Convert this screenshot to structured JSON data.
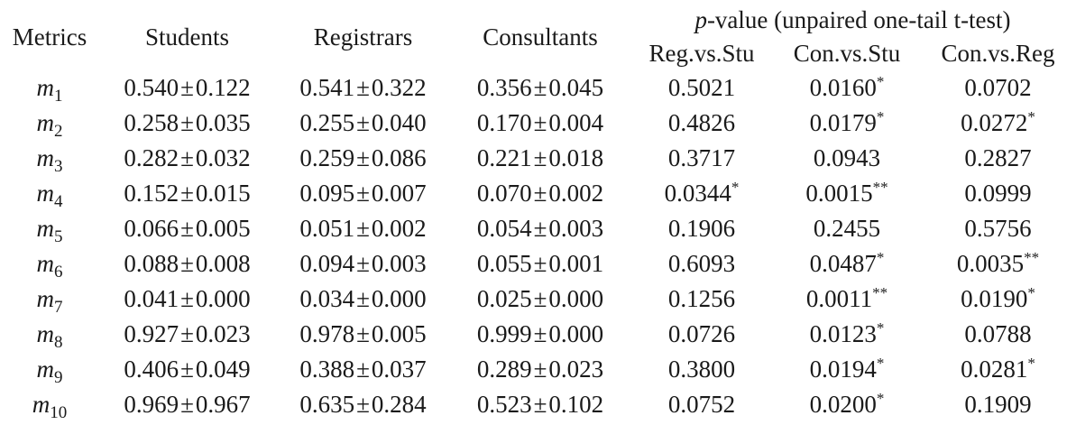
{
  "table": {
    "headers": {
      "metrics": "Metrics",
      "students": "Students",
      "registrars": "Registrars",
      "consultants": "Consultants",
      "pvalue_var": "p",
      "pvalue_title": "-value (unpaired one-tail t-test)",
      "reg_vs_stu": "Reg.vs.Stu",
      "con_vs_stu": "Con.vs.Stu",
      "con_vs_reg": "Con.vs.Reg"
    },
    "pm_symbol": "±",
    "rows": [
      {
        "metric": "m",
        "sub": "1",
        "students": [
          "0.540",
          "0.122"
        ],
        "registrars": [
          "0.541",
          "0.322"
        ],
        "consultants": [
          "0.356",
          "0.045"
        ],
        "reg_vs_stu": [
          "0.5021",
          ""
        ],
        "con_vs_stu": [
          "0.0160",
          "*"
        ],
        "con_vs_reg": [
          "0.0702",
          ""
        ]
      },
      {
        "metric": "m",
        "sub": "2",
        "students": [
          "0.258",
          "0.035"
        ],
        "registrars": [
          "0.255",
          "0.040"
        ],
        "consultants": [
          "0.170",
          "0.004"
        ],
        "reg_vs_stu": [
          "0.4826",
          ""
        ],
        "con_vs_stu": [
          "0.0179",
          "*"
        ],
        "con_vs_reg": [
          "0.0272",
          "*"
        ]
      },
      {
        "metric": "m",
        "sub": "3",
        "students": [
          "0.282",
          "0.032"
        ],
        "registrars": [
          "0.259",
          "0.086"
        ],
        "consultants": [
          "0.221",
          "0.018"
        ],
        "reg_vs_stu": [
          "0.3717",
          ""
        ],
        "con_vs_stu": [
          "0.0943",
          ""
        ],
        "con_vs_reg": [
          "0.2827",
          ""
        ]
      },
      {
        "metric": "m",
        "sub": "4",
        "students": [
          "0.152",
          "0.015"
        ],
        "registrars": [
          "0.095",
          "0.007"
        ],
        "consultants": [
          "0.070",
          "0.002"
        ],
        "reg_vs_stu": [
          "0.0344",
          "*"
        ],
        "con_vs_stu": [
          "0.0015",
          "**"
        ],
        "con_vs_reg": [
          "0.0999",
          ""
        ]
      },
      {
        "metric": "m",
        "sub": "5",
        "students": [
          "0.066",
          "0.005"
        ],
        "registrars": [
          "0.051",
          "0.002"
        ],
        "consultants": [
          "0.054",
          "0.003"
        ],
        "reg_vs_stu": [
          "0.1906",
          ""
        ],
        "con_vs_stu": [
          "0.2455",
          ""
        ],
        "con_vs_reg": [
          "0.5756",
          ""
        ]
      },
      {
        "metric": "m",
        "sub": "6",
        "students": [
          "0.088",
          "0.008"
        ],
        "registrars": [
          "0.094",
          "0.003"
        ],
        "consultants": [
          "0.055",
          "0.001"
        ],
        "reg_vs_stu": [
          "0.6093",
          ""
        ],
        "con_vs_stu": [
          "0.0487",
          "*"
        ],
        "con_vs_reg": [
          "0.0035",
          "**"
        ]
      },
      {
        "metric": "m",
        "sub": "7",
        "students": [
          "0.041",
          "0.000"
        ],
        "registrars": [
          "0.034",
          "0.000"
        ],
        "consultants": [
          "0.025",
          "0.000"
        ],
        "reg_vs_stu": [
          "0.1256",
          ""
        ],
        "con_vs_stu": [
          "0.0011",
          "**"
        ],
        "con_vs_reg": [
          "0.0190",
          "*"
        ]
      },
      {
        "metric": "m",
        "sub": "8",
        "students": [
          "0.927",
          "0.023"
        ],
        "registrars": [
          "0.978",
          "0.005"
        ],
        "consultants": [
          "0.999",
          "0.000"
        ],
        "reg_vs_stu": [
          "0.0726",
          ""
        ],
        "con_vs_stu": [
          "0.0123",
          "*"
        ],
        "con_vs_reg": [
          "0.0788",
          ""
        ]
      },
      {
        "metric": "m",
        "sub": "9",
        "students": [
          "0.406",
          "0.049"
        ],
        "registrars": [
          "0.388",
          "0.037"
        ],
        "consultants": [
          "0.289",
          "0.023"
        ],
        "reg_vs_stu": [
          "0.3800",
          ""
        ],
        "con_vs_stu": [
          "0.0194",
          "*"
        ],
        "con_vs_reg": [
          "0.0281",
          "*"
        ]
      },
      {
        "metric": "m",
        "sub": "10",
        "students": [
          "0.969",
          "0.967"
        ],
        "registrars": [
          "0.635",
          "0.284"
        ],
        "consultants": [
          "0.523",
          "0.102"
        ],
        "reg_vs_stu": [
          "0.0752",
          ""
        ],
        "con_vs_stu": [
          "0.0200",
          "*"
        ],
        "con_vs_reg": [
          "0.1909",
          ""
        ]
      }
    ]
  }
}
